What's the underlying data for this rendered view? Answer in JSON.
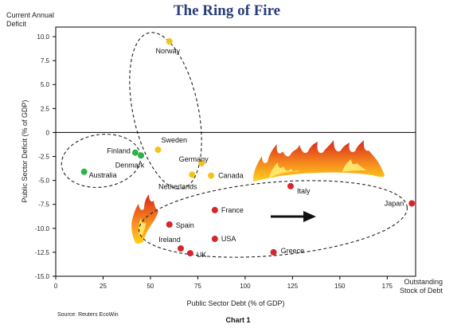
{
  "chart_data": {
    "type": "scatter",
    "title": "The Ring of Fire",
    "caption": "Chart 1",
    "source": "Source: Reuters EcoWin",
    "xlabel": "Public Sector Debt (% of GDP)",
    "ylabel": "Public Sector Deficit (% of GDP)",
    "corner_y_label": [
      "Current Annual",
      "Deficit"
    ],
    "corner_x_label": [
      "Outstanding",
      "Stock of Debt"
    ],
    "xlim": [
      0,
      190
    ],
    "ylim": [
      -15,
      11
    ],
    "xticks": [
      0,
      25,
      50,
      75,
      100,
      125,
      150,
      175
    ],
    "yticks": [
      10.0,
      7.5,
      5.0,
      2.5,
      0,
      -2.5,
      -5.0,
      -7.5,
      -10.0,
      -12.5,
      -15.0
    ],
    "ytick_labels": [
      "10.0",
      "7.5",
      "5.0",
      "2.5",
      "0",
      "-2.5",
      "-5.0",
      "-7.5",
      "-10.0",
      "-12.5",
      "-15.0"
    ],
    "colors": {
      "green": "#2db24a",
      "yellow": "#f4c21b",
      "red": "#d7262b",
      "arrow": "#111111"
    },
    "points": [
      {
        "name": "Norway",
        "x": 60,
        "y": 9.5,
        "group": "yellow"
      },
      {
        "name": "Sweden",
        "x": 54,
        "y": -1.8,
        "group": "yellow"
      },
      {
        "name": "Germany",
        "x": 77,
        "y": -3.2,
        "group": "yellow"
      },
      {
        "name": "Netherlands",
        "x": 72,
        "y": -4.4,
        "group": "yellow"
      },
      {
        "name": "Canada",
        "x": 82,
        "y": -4.5,
        "group": "yellow"
      },
      {
        "name": "Finland",
        "x": 42,
        "y": -2.1,
        "group": "green"
      },
      {
        "name": "Denmark",
        "x": 45,
        "y": -2.4,
        "group": "green"
      },
      {
        "name": "Australia",
        "x": 15,
        "y": -4.1,
        "group": "green"
      },
      {
        "name": "Italy",
        "x": 124,
        "y": -5.6,
        "group": "red"
      },
      {
        "name": "Japan",
        "x": 188,
        "y": -7.4,
        "group": "red"
      },
      {
        "name": "France",
        "x": 84,
        "y": -8.1,
        "group": "red"
      },
      {
        "name": "Spain",
        "x": 60,
        "y": -9.6,
        "group": "red"
      },
      {
        "name": "USA",
        "x": 84,
        "y": -11.1,
        "group": "red"
      },
      {
        "name": "Ireland",
        "x": 66,
        "y": -12.1,
        "group": "red"
      },
      {
        "name": "UK",
        "x": 71,
        "y": -12.6,
        "group": "red"
      },
      {
        "name": "Greece",
        "x": 115,
        "y": -12.5,
        "group": "red"
      }
    ]
  }
}
